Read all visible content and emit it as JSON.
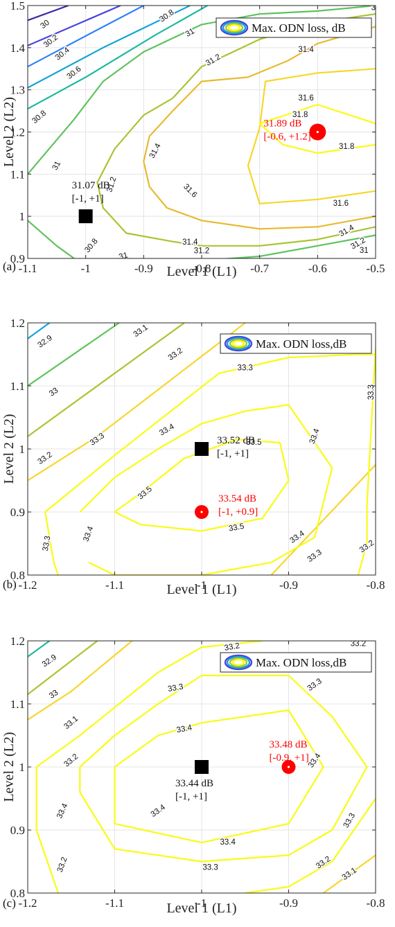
{
  "figure": {
    "legend_label_a": "Max. ODN loss, dB",
    "legend_label_bc": "Max. ODN loss,dB"
  },
  "chart_data": [
    {
      "type": "contour",
      "panel_label": "(a)",
      "xlabel": "Level 1 (L1)",
      "ylabel": "Level 2 (L2)",
      "xlim": [
        -1.1,
        -0.5
      ],
      "ylim": [
        0.9,
        1.5
      ],
      "xticks": [
        "-1.1",
        "-1",
        "-0.9",
        "-0.8",
        "-0.7",
        "-0.6",
        "-0.5"
      ],
      "yticks": [
        "0.9",
        "1",
        "1.1",
        "1.2",
        "1.3",
        "1.4",
        "1.5"
      ],
      "grid": true,
      "legend": "Max. ODN loss, dB",
      "legend_position": "top-right",
      "contour_levels": [
        30,
        30.2,
        30.4,
        30.6,
        30.8,
        31,
        31.2,
        31.4,
        31.6,
        31.8
      ],
      "annotations": [
        {
          "x": -1.0,
          "y": 1.0,
          "marker": "square",
          "color": "#000000",
          "lines": [
            "31.07 dB",
            "[-1, +1]"
          ]
        },
        {
          "x": -0.6,
          "y": 1.2,
          "marker": "circle",
          "color": "#ff0000",
          "lines": [
            "31.89 dB",
            "[-0.6, +1.2]"
          ]
        }
      ]
    },
    {
      "type": "contour",
      "panel_label": "(b)",
      "xlabel": "Level 1 (L1)",
      "ylabel": "Level 2 (L2)",
      "xlim": [
        -1.2,
        -0.8
      ],
      "ylim": [
        0.8,
        1.2
      ],
      "xticks": [
        "-1.2",
        "-1.1",
        "-1",
        "-0.9",
        "-0.8"
      ],
      "yticks": [
        "0.8",
        "0.9",
        "1",
        "1.1",
        "1.2"
      ],
      "grid": true,
      "legend": "Max. ODN loss,dB",
      "legend_position": "top-right",
      "contour_levels": [
        32.9,
        33,
        33.1,
        33.2,
        33.3,
        33.4,
        33.5
      ],
      "annotations": [
        {
          "x": -1.0,
          "y": 1.0,
          "marker": "square",
          "color": "#000000",
          "lines": [
            "33.52 dB",
            "[-1, +1]"
          ]
        },
        {
          "x": -1.0,
          "y": 0.9,
          "marker": "circle",
          "color": "#ff0000",
          "lines": [
            "33.54 dB",
            "[-1, +0.9]"
          ]
        }
      ]
    },
    {
      "type": "contour",
      "panel_label": "(c)",
      "xlabel": "Level 1 (L1)",
      "ylabel": "Level 2 (L2)",
      "xlim": [
        -1.2,
        -0.8
      ],
      "ylim": [
        0.8,
        1.2
      ],
      "xticks": [
        "-1.2",
        "-1.1",
        "-1",
        "-0.9",
        "-0.8"
      ],
      "yticks": [
        "0.8",
        "0.9",
        "1",
        "1.1",
        "1.2"
      ],
      "grid": true,
      "legend": "Max. ODN loss,dB",
      "legend_position": "top-right",
      "contour_levels": [
        32.9,
        33,
        33.1,
        33.2,
        33.3,
        33.4
      ],
      "annotations": [
        {
          "x": -1.0,
          "y": 1.0,
          "marker": "square",
          "color": "#000000",
          "lines": [
            "33.44 dB",
            "[-1, +1]"
          ]
        },
        {
          "x": -0.9,
          "y": 1.0,
          "marker": "circle",
          "color": "#ff0000",
          "lines": [
            "33.48 dB",
            "[-0.9, +1]"
          ]
        }
      ]
    }
  ]
}
